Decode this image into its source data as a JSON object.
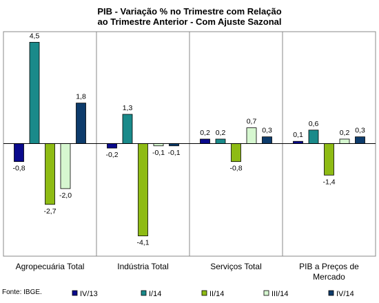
{
  "chart_data": {
    "type": "bar",
    "title_line1": "PIB - Variação % no Trimestre com Relação",
    "title_line2": "ao Trimestre Anterior - Com Ajuste Sazonal",
    "categories": [
      [
        "Agropecuária Total"
      ],
      [
        "Indústria Total"
      ],
      [
        "Serviços Total"
      ],
      [
        "PIB a Preços de",
        "Mercado"
      ]
    ],
    "series": [
      {
        "name": "IV/13",
        "color": "#0a0a8c",
        "values": [
          -0.8,
          -0.2,
          0.2,
          0.1
        ],
        "labels": [
          "-0,8",
          "-0,2",
          "0,2",
          "0,1"
        ]
      },
      {
        "name": "I/14",
        "color": "#1a8a8a",
        "values": [
          4.5,
          1.3,
          0.2,
          0.6
        ],
        "labels": [
          "4,5",
          "1,3",
          "0,2",
          "0,6"
        ]
      },
      {
        "name": "II/14",
        "color": "#8ebb14",
        "values": [
          -2.7,
          -4.1,
          -0.8,
          -1.4
        ],
        "labels": [
          "-2,7",
          "-4,1",
          "-0,8",
          "-1,4"
        ]
      },
      {
        "name": "III/14",
        "color": "#d6f7d0",
        "values": [
          -2.0,
          -0.1,
          0.7,
          0.2
        ],
        "labels": [
          "-2,0",
          "-0,1",
          "0,7",
          "0,2"
        ]
      },
      {
        "name": "IV/14",
        "color": "#0d3b6b",
        "values": [
          1.8,
          -0.1,
          0.3,
          0.3
        ],
        "labels": [
          "1,8",
          "-0,1",
          "0,3",
          "0,3"
        ]
      }
    ],
    "ylim": [
      -5.0,
      4.8
    ],
    "grid": false,
    "legend_position": "bottom"
  },
  "source": "Fonte: IBGE."
}
